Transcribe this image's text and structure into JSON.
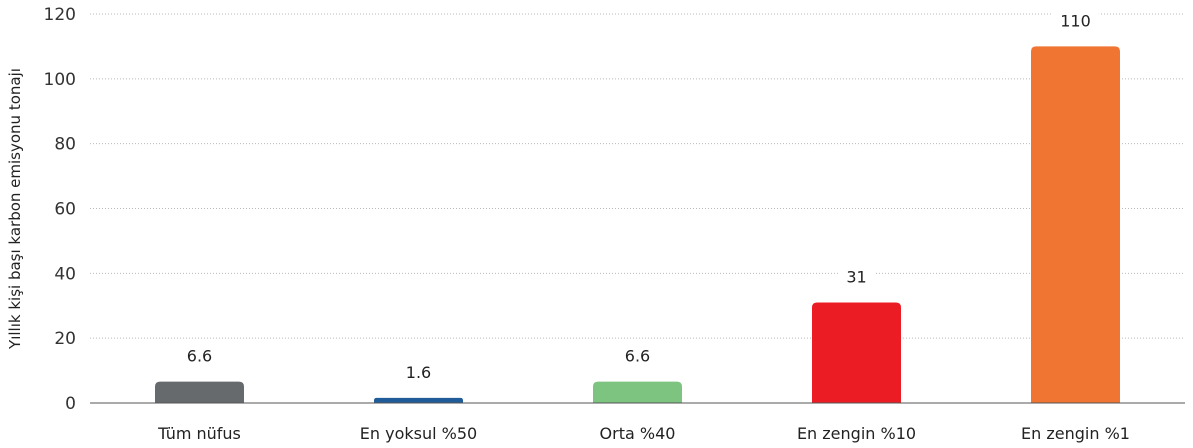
{
  "chart_data": {
    "type": "bar",
    "title": "",
    "xlabel": "",
    "ylabel": "Yıllık kişi başı karbon emisyonu tonajı",
    "categories": [
      "Tüm nüfus",
      "En yoksul %50",
      "Orta %40",
      "En zengin %10",
      "En zengin %1"
    ],
    "values": [
      6.6,
      1.6,
      6.6,
      31,
      110
    ],
    "data_labels": [
      "6.6",
      "1.6",
      "6.6",
      "31",
      "110"
    ],
    "colors": [
      "#676a6d",
      "#1f5c99",
      "#7cc47f",
      "#ec1c24",
      "#f07532"
    ],
    "ylim": [
      0,
      120
    ],
    "yticks": [
      0,
      20,
      40,
      60,
      80,
      100,
      120
    ],
    "grid": true,
    "legend": "none"
  }
}
